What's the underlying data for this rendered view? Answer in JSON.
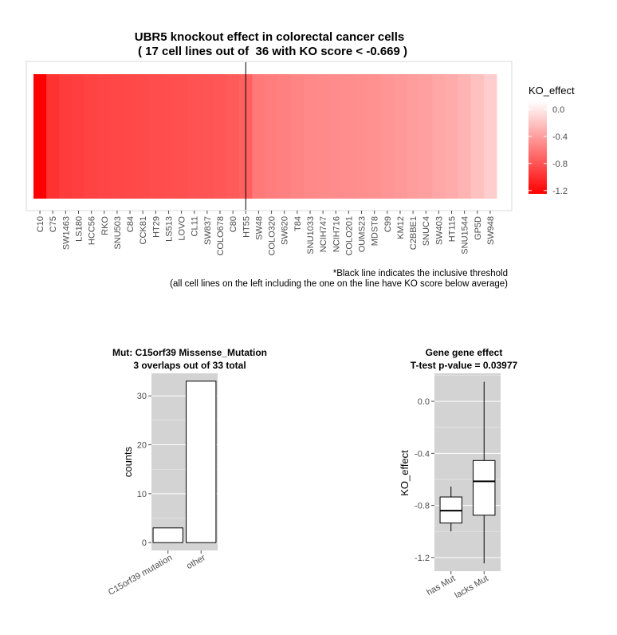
{
  "chart_data": [
    {
      "type": "heatmap",
      "title": "UBR5 knockout effect in colorectal cancer cells",
      "subtitle": "( 17 cell lines out of  36 with KO score < -0.669 )",
      "categories": [
        "C10",
        "C75",
        "SW1463",
        "LS180",
        "HCC56",
        "RKO",
        "SNU503",
        "C84",
        "CCK81",
        "HT29",
        "LS513",
        "LOVO",
        "CL11",
        "SW837",
        "COLO678",
        "C80",
        "HT55",
        "SW48",
        "COLO320",
        "SW620",
        "T84",
        "SNU1033",
        "NCIH747",
        "NCIH716",
        "COLO201",
        "OUMS23",
        "MDST8",
        "C99",
        "KM12",
        "C2BBE1",
        "SNUC4",
        "SW403",
        "HT115",
        "SNU1544",
        "GP5D",
        "SW948"
      ],
      "values": [
        -1.25,
        -0.98,
        -0.93,
        -0.91,
        -0.89,
        -0.88,
        -0.87,
        -0.86,
        -0.85,
        -0.84,
        -0.83,
        -0.82,
        -0.81,
        -0.8,
        -0.79,
        -0.76,
        -0.73,
        -0.6,
        -0.58,
        -0.56,
        -0.54,
        -0.52,
        -0.51,
        -0.5,
        -0.49,
        -0.48,
        -0.47,
        -0.45,
        -0.43,
        -0.41,
        -0.39,
        -0.36,
        -0.33,
        -0.29,
        -0.22,
        -0.15
      ],
      "threshold_category": "HT55",
      "legend": {
        "title": "KO_effect",
        "ticks": [
          0.0,
          -0.4,
          -0.8,
          -1.2
        ],
        "tick_labels": [
          "0.0",
          "-0.4",
          "-0.8",
          "-1.2"
        ],
        "range": [
          -1.25,
          0.12
        ],
        "high_color": "#ffffff",
        "low_color": "#ff0000",
        "position": "right"
      },
      "notes": [
        "*Black line indicates the inclusive threshold",
        "(all cell lines on the left including the one on the line have KO score below average)"
      ],
      "grid": false
    },
    {
      "type": "bar",
      "title": "Mut: C15orf39 Missense_Mutation",
      "subtitle": "3 overlaps out of 33 total",
      "categories": [
        "C15orf39 mutation",
        "other"
      ],
      "values": [
        3,
        33
      ],
      "ylabel": "counts",
      "xlabel": "",
      "ylim": [
        -1.6,
        34.6
      ],
      "yticks": [
        0,
        10,
        20,
        30
      ],
      "panel_color": "#d3d3d3",
      "bar_fill": "#ffffff",
      "grid": true
    },
    {
      "type": "box",
      "title": "Gene gene effect",
      "subtitle": "T-test p-value = 0.03977",
      "categories": [
        "has Mut",
        "lacks Mut"
      ],
      "boxes": [
        {
          "name": "has Mut",
          "min": -1.0,
          "q1": -0.935,
          "median": -0.84,
          "q3": -0.735,
          "max": -0.655
        },
        {
          "name": "lacks Mut",
          "min": -1.245,
          "q1": -0.875,
          "median": -0.615,
          "q3": -0.455,
          "max": 0.15
        }
      ],
      "ylabel": "KO_effect",
      "xlabel": "",
      "ylim": [
        -1.305,
        0.215
      ],
      "yticks": [
        0.0,
        -0.4,
        -0.8,
        -1.2
      ],
      "ytick_labels": [
        "0.0",
        "-0.4",
        "-0.8",
        "-1.2"
      ],
      "panel_color": "#d3d3d3",
      "grid": true
    }
  ]
}
